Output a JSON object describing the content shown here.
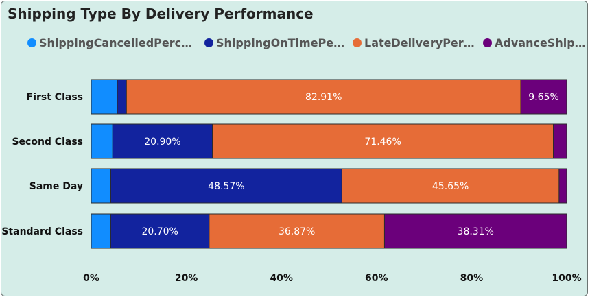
{
  "chart_data": {
    "type": "bar",
    "orientation": "horizontal",
    "stacked": "percent",
    "title": "Shipping Type By Delivery Performance",
    "xlabel": "",
    "ylabel": "",
    "xlim": [
      0,
      100
    ],
    "x_ticks": [
      "0%",
      "20%",
      "40%",
      "60%",
      "80%",
      "100%"
    ],
    "grid": false,
    "legend_position": "top",
    "categories": [
      "First Class",
      "Second Class",
      "Same Day",
      "Standard Class"
    ],
    "series": [
      {
        "name": "ShippingCancelledPercent...",
        "color": "#118dff",
        "values": [
          5.5,
          4.5,
          4.1,
          4.1
        ],
        "labels": [
          "",
          "",
          "",
          ""
        ]
      },
      {
        "name": "ShippingOnTimePerc...",
        "color": "#12239e",
        "values": [
          1.9,
          20.9,
          48.57,
          20.7
        ],
        "labels": [
          "",
          "20.90%",
          "48.57%",
          "20.70%"
        ]
      },
      {
        "name": "LateDeliveryPerc...",
        "color": "#e66c37",
        "values": [
          82.91,
          71.46,
          45.65,
          36.87
        ],
        "labels": [
          "82.91%",
          "71.46%",
          "45.65%",
          "36.87%"
        ]
      },
      {
        "name": "AdvanceShippi...",
        "color": "#6b007b",
        "values": [
          9.65,
          2.8,
          1.6,
          38.31
        ],
        "labels": [
          "9.65%",
          "",
          "",
          "38.31%"
        ]
      }
    ]
  }
}
